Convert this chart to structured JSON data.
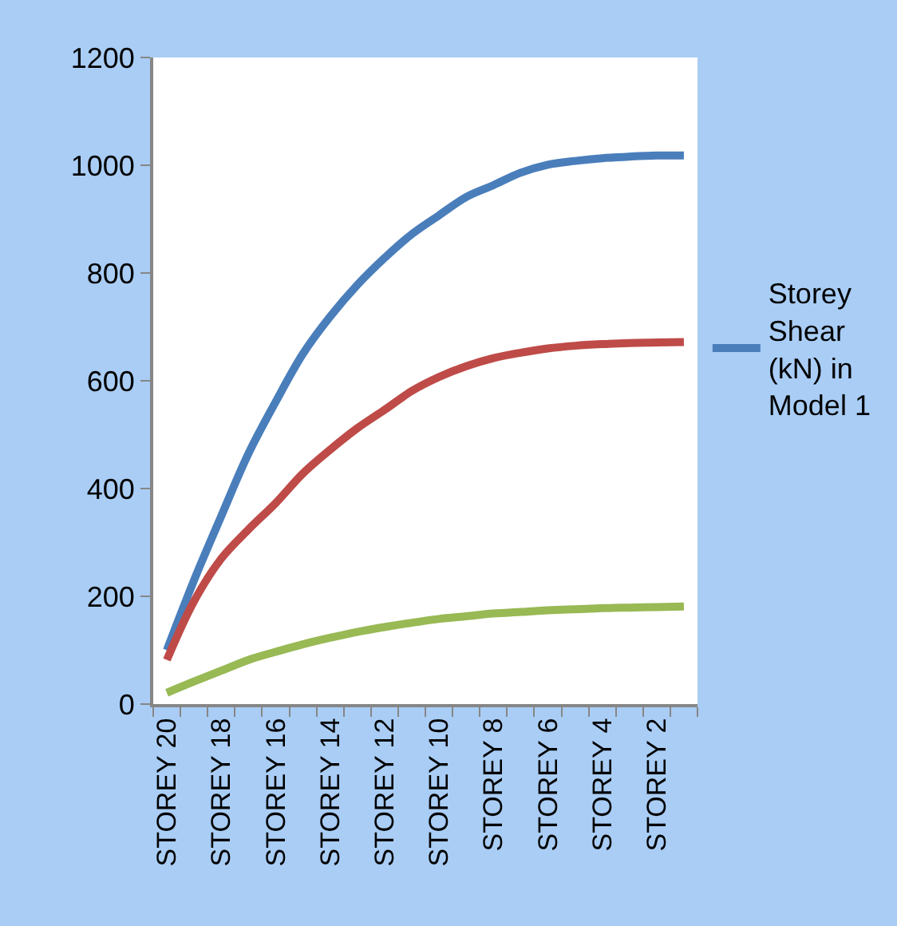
{
  "chart_data": {
    "type": "line",
    "categories": [
      "STOREY 20",
      null,
      "STOREY 18",
      null,
      "STOREY 16",
      null,
      "STOREY 14",
      null,
      "STOREY 12",
      null,
      "STOREY 10",
      null,
      "STOREY 8",
      null,
      "STOREY 6",
      null,
      "STOREY 4",
      null,
      "STOREY 2",
      null
    ],
    "series": [
      {
        "name": "Storey Shear (kN) in Model 1",
        "color": "#4a7ebb",
        "values": [
          100,
          230,
          349,
          465,
          561,
          650,
          719,
          778,
          828,
          872,
          907,
          941,
          963,
          986,
          1001,
          1008,
          1013,
          1016,
          1018,
          1018
        ]
      },
      {
        "color": "#be4b48",
        "values": [
          82,
          191,
          270,
          324,
          373,
          428,
          472,
          512,
          546,
          581,
          607,
          627,
          642,
          652,
          660,
          665,
          668,
          670,
          671,
          672
        ]
      },
      {
        "color": "#98b954",
        "values": [
          21,
          42,
          62,
          82,
          97,
          111,
          123,
          134,
          143,
          151,
          158,
          163,
          168,
          171,
          174,
          176,
          178,
          179,
          180,
          181
        ]
      }
    ],
    "ylim": [
      0,
      1200
    ],
    "yticks": [
      0,
      200,
      400,
      600,
      800,
      1000,
      1200
    ],
    "legend": "right",
    "marker": "none",
    "line_style": "solid"
  }
}
